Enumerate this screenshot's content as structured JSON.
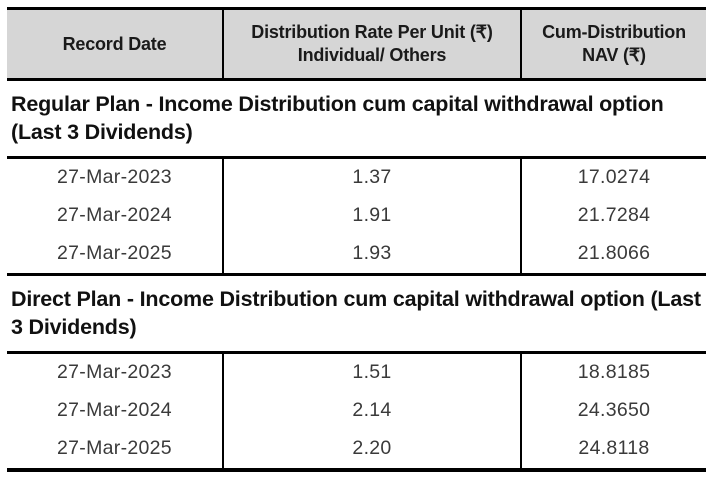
{
  "colors": {
    "header_bg": "#d6d6d6",
    "border": "#000000",
    "section_text": "#111111",
    "data_text": "#3a3a3a"
  },
  "table": {
    "headers": {
      "record_date": "Record Date",
      "rate_line1": "Distribution Rate Per Unit (₹)",
      "rate_line2": "Individual/ Others",
      "nav": "Cum-Distribution NAV (₹)"
    },
    "sections": [
      {
        "title": "Regular Plan - Income Distribution cum capital withdrawal option (Last 3 Dividends)",
        "rows": [
          {
            "date": "27-Mar-2023",
            "rate": "1.37",
            "nav": "17.0274"
          },
          {
            "date": "27-Mar-2024",
            "rate": "1.91",
            "nav": "21.7284"
          },
          {
            "date": "27-Mar-2025",
            "rate": "1.93",
            "nav": "21.8066"
          }
        ]
      },
      {
        "title": "Direct Plan - Income Distribution cum capital withdrawal option (Last 3 Dividends)",
        "rows": [
          {
            "date": "27-Mar-2023",
            "rate": "1.51",
            "nav": "18.8185"
          },
          {
            "date": "27-Mar-2024",
            "rate": "2.14",
            "nav": "24.3650"
          },
          {
            "date": "27-Mar-2025",
            "rate": "2.20",
            "nav": "24.8118"
          }
        ]
      }
    ]
  }
}
